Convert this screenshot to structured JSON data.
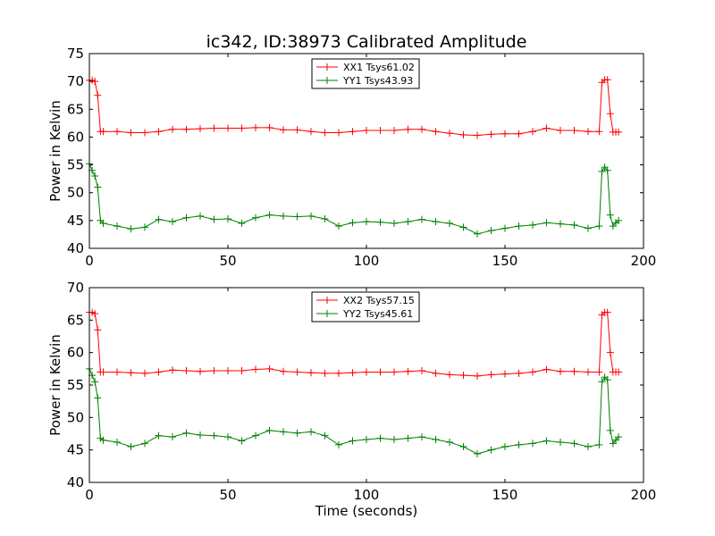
{
  "figure": {
    "title": "ic342, ID:38973 Calibrated Amplitude",
    "xlabel": "Time (seconds)"
  },
  "chart_data": [
    {
      "type": "line",
      "title": "ic342, ID:38973 Calibrated Amplitude",
      "xlabel": "",
      "ylabel": "Power in Kelvin",
      "xlim": [
        0,
        200
      ],
      "ylim": [
        40,
        75
      ],
      "xticks": [
        0,
        50,
        100,
        150,
        200
      ],
      "yticks": [
        40,
        45,
        50,
        55,
        60,
        65,
        70,
        75
      ],
      "grid": false,
      "legend_position": "top-center",
      "marker": "+",
      "series": [
        {
          "name": "XX1 Tsys61.02",
          "color": "#ff0000",
          "x": [
            0,
            1,
            2,
            3,
            4,
            5,
            10,
            15,
            20,
            25,
            30,
            35,
            40,
            45,
            50,
            55,
            60,
            65,
            70,
            75,
            80,
            85,
            90,
            95,
            100,
            105,
            110,
            115,
            120,
            125,
            130,
            135,
            140,
            145,
            150,
            155,
            160,
            165,
            170,
            175,
            180,
            184,
            185,
            186,
            187,
            188,
            189,
            190,
            191
          ],
          "y": [
            70.2,
            70.2,
            70.0,
            67.5,
            61.0,
            61.0,
            61.0,
            60.8,
            60.8,
            61.0,
            61.4,
            61.4,
            61.5,
            61.6,
            61.6,
            61.6,
            61.7,
            61.7,
            61.3,
            61.3,
            61.0,
            60.8,
            60.8,
            61.0,
            61.2,
            61.2,
            61.2,
            61.4,
            61.4,
            61.0,
            60.7,
            60.4,
            60.3,
            60.5,
            60.6,
            60.6,
            61.0,
            61.6,
            61.2,
            61.2,
            61.0,
            61.0,
            69.8,
            70.3,
            70.3,
            64.2,
            60.9,
            60.9,
            60.9
          ]
        },
        {
          "name": "YY1 Tsys43.93",
          "color": "#008000",
          "x": [
            0,
            1,
            2,
            3,
            4,
            5,
            10,
            15,
            20,
            25,
            30,
            35,
            40,
            45,
            50,
            55,
            60,
            65,
            70,
            75,
            80,
            85,
            90,
            95,
            100,
            105,
            110,
            115,
            120,
            125,
            130,
            135,
            140,
            145,
            150,
            155,
            160,
            165,
            170,
            175,
            180,
            184,
            185,
            186,
            187,
            188,
            189,
            190,
            191
          ],
          "y": [
            55.2,
            54.0,
            53.0,
            51.0,
            45.0,
            44.5,
            44.0,
            43.5,
            43.8,
            45.2,
            44.8,
            45.5,
            45.8,
            45.2,
            45.3,
            44.5,
            45.5,
            46.0,
            45.8,
            45.7,
            45.8,
            45.3,
            44.0,
            44.6,
            44.8,
            44.7,
            44.5,
            44.8,
            45.2,
            44.8,
            44.5,
            43.8,
            42.6,
            43.2,
            43.6,
            44.0,
            44.2,
            44.6,
            44.4,
            44.2,
            43.6,
            44.0,
            53.8,
            54.6,
            54.0,
            46.0,
            44.0,
            44.6,
            45.0
          ]
        }
      ]
    },
    {
      "type": "line",
      "title": "",
      "xlabel": "Time (seconds)",
      "ylabel": "Power in Kelvin",
      "xlim": [
        0,
        200
      ],
      "ylim": [
        40,
        70
      ],
      "xticks": [
        0,
        50,
        100,
        150,
        200
      ],
      "yticks": [
        40,
        45,
        50,
        55,
        60,
        65,
        70
      ],
      "grid": false,
      "legend_position": "top-center",
      "marker": "+",
      "series": [
        {
          "name": "XX2 Tsys57.15",
          "color": "#ff0000",
          "x": [
            0,
            1,
            2,
            3,
            4,
            5,
            10,
            15,
            20,
            25,
            30,
            35,
            40,
            45,
            50,
            55,
            60,
            65,
            70,
            75,
            80,
            85,
            90,
            95,
            100,
            105,
            110,
            115,
            120,
            125,
            130,
            135,
            140,
            145,
            150,
            155,
            160,
            165,
            170,
            175,
            180,
            184,
            185,
            186,
            187,
            188,
            189,
            190,
            191
          ],
          "y": [
            66.2,
            66.2,
            66.0,
            63.5,
            57.0,
            57.0,
            57.0,
            56.9,
            56.8,
            57.0,
            57.3,
            57.2,
            57.1,
            57.2,
            57.2,
            57.2,
            57.4,
            57.5,
            57.1,
            57.0,
            56.9,
            56.8,
            56.8,
            56.9,
            57.0,
            57.0,
            57.0,
            57.1,
            57.2,
            56.8,
            56.6,
            56.5,
            56.4,
            56.6,
            56.7,
            56.8,
            57.0,
            57.4,
            57.1,
            57.1,
            57.0,
            57.0,
            65.8,
            66.2,
            66.2,
            60.0,
            57.0,
            57.0,
            57.0
          ]
        },
        {
          "name": "YY2 Tsys45.61",
          "color": "#008000",
          "x": [
            0,
            1,
            2,
            3,
            4,
            5,
            10,
            15,
            20,
            25,
            30,
            35,
            40,
            45,
            50,
            55,
            60,
            65,
            70,
            75,
            80,
            85,
            90,
            95,
            100,
            105,
            110,
            115,
            120,
            125,
            130,
            135,
            140,
            145,
            150,
            155,
            160,
            165,
            170,
            175,
            180,
            184,
            185,
            186,
            187,
            188,
            189,
            190,
            191
          ],
          "y": [
            57.5,
            56.5,
            55.5,
            53.0,
            46.8,
            46.5,
            46.2,
            45.5,
            46.0,
            47.2,
            47.0,
            47.6,
            47.3,
            47.2,
            47.0,
            46.4,
            47.2,
            48.0,
            47.8,
            47.6,
            47.8,
            47.2,
            45.8,
            46.4,
            46.6,
            46.8,
            46.6,
            46.8,
            47.0,
            46.6,
            46.2,
            45.5,
            44.4,
            45.0,
            45.5,
            45.8,
            46.0,
            46.4,
            46.2,
            46.0,
            45.5,
            45.8,
            55.5,
            56.2,
            55.8,
            48.0,
            46.0,
            46.5,
            47.0
          ]
        }
      ]
    }
  ]
}
